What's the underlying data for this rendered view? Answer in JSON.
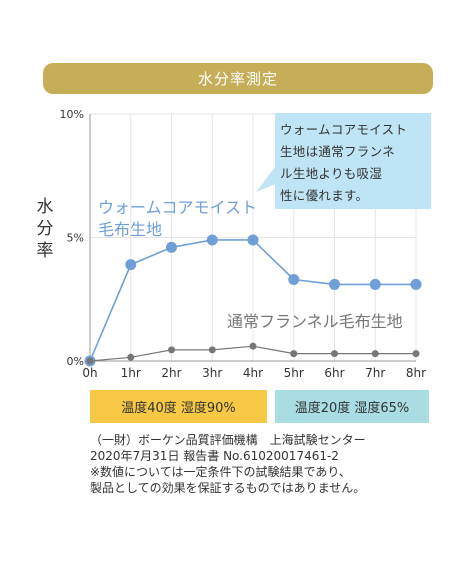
{
  "title": "水分率測定",
  "chart_data": {
    "type": "line",
    "ylabel": "水分率",
    "ylim": [
      0,
      10
    ],
    "yticks": [
      "0%",
      "5%",
      "10%"
    ],
    "categories": [
      "0h",
      "1hr",
      "2hr",
      "3hr",
      "4hr",
      "5hr",
      "6hr",
      "7hr",
      "8hr"
    ],
    "series": [
      {
        "name": "ウォームコアモイスト毛布生地",
        "name_lines": [
          "ウォームコアモイスト",
          "毛布生地"
        ],
        "color": "#6f9fd6",
        "values": [
          0,
          3.9,
          4.6,
          4.9,
          4.9,
          3.3,
          3.1,
          3.1,
          3.1
        ]
      },
      {
        "name": "通常フランネル毛布生地",
        "color": "#777777",
        "values": [
          0,
          0.15,
          0.45,
          0.45,
          0.6,
          0.3,
          0.3,
          0.3,
          0.3
        ]
      }
    ],
    "callout_lines": [
      "ウォームコアモイスト",
      "生地は通常フランネ",
      "ル生地よりも吸湿",
      "性に優れます。"
    ]
  },
  "conditions": [
    {
      "label": "温度40度 湿度90%",
      "color": "#f7c844"
    },
    {
      "label": "温度20度 湿度65%",
      "color": "#a9dde3"
    }
  ],
  "footnote": [
    "（一財）ボーケン品質評価機構　上海試験センター",
    "2020年7月31日 報告書 No.61020017461-2",
    "※数値については一定条件下の試験結果であり、",
    "製品としての効果を保証するものではありません。"
  ]
}
